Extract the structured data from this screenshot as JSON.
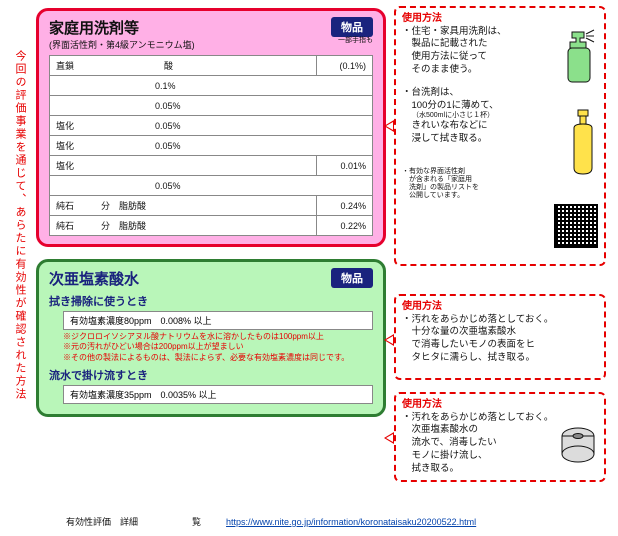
{
  "sideText": "今回の評価事業を通じて、あらたに有効性が確認された方法",
  "pink": {
    "title": "家庭用洗剤等",
    "sub": "(界面活性剤・第4級アンモニウム塩)",
    "badge": "物品",
    "badgeUnder": "一部手指も",
    "rows": [
      {
        "name": "直鎖　　　　　　　　　　酸",
        "pct": "(0.1%)"
      },
      {
        "name": "　　　　　　　　　　　0.1%",
        "pct": ""
      },
      {
        "name": "　　　　　　　　　　　0.05%",
        "pct": ""
      },
      {
        "name": "塩化　　　　　　　　　0.05%",
        "pct": ""
      },
      {
        "name": "塩化　　　　　　　　　0.05%",
        "pct": ""
      },
      {
        "name": "塩化",
        "pct": "0.01%"
      },
      {
        "name": "　　　　　　　　　　　0.05%",
        "pct": ""
      },
      {
        "name": "純石　　　分　脂肪酸",
        "pct": "0.24%"
      },
      {
        "name": "純石　　　分　脂肪酸",
        "pct": "0.22%"
      }
    ]
  },
  "green": {
    "title": "次亜塩素酸水",
    "badge": "物品",
    "h1": "拭き掃除に使うとき",
    "r1": "有効塩素濃度80ppm　0.008% 以上",
    "note": "※ジクロロイソシアヌル酸ナトリウムを水に溶かしたものは100ppm以上\n※元の汚れがひどい場合は200ppm以上が望ましい\n※その他の製法によるものは、製法によらず、必要な有効塩素濃度は同じです。",
    "h2": "流水で掛け流すとき",
    "r2": "有効塩素濃度35ppm　0.0035% 以上"
  },
  "c1": {
    "hd": "使用方法",
    "p1": "・住宅・家具用洗剤は、\n　製品に記載された\n　使用方法に従って\n　そのまま使う。",
    "p2": "・台洗剤は、\n　100分の1に薄めて、",
    "p2s": "（水500mlに小さじ１杯）",
    "p3": "　きれいな布などに\n　浸して拭き取る。",
    "p4": "・有効な界面活性剤\n　が含まれる「家庭用\n　洗剤」の製品リストを\n　公開しています。"
  },
  "c2": {
    "hd": "使用方法",
    "p": "・汚れをあらかじめ落としておく。\n　十分な量の次亜塩素酸水\n　で消毒したいモノの表面をヒ\n　タヒタに濡らし、拭き取る。"
  },
  "c3": {
    "hd": "使用方法",
    "p": "・汚れをあらかじめ落としておく。\n　次亜塩素酸水の\n　流水で、消毒したい\n　モノに掛け流し、\n　拭き取る。"
  },
  "footer": {
    "left": "有効性評価　詳細　　　　　　覧",
    "url": "https://www.nite.go.jp/information/koronataisaku20200522.html"
  },
  "colors": {
    "red": "#e60000",
    "navy": "#1a237e",
    "green": "#2e7d32"
  }
}
